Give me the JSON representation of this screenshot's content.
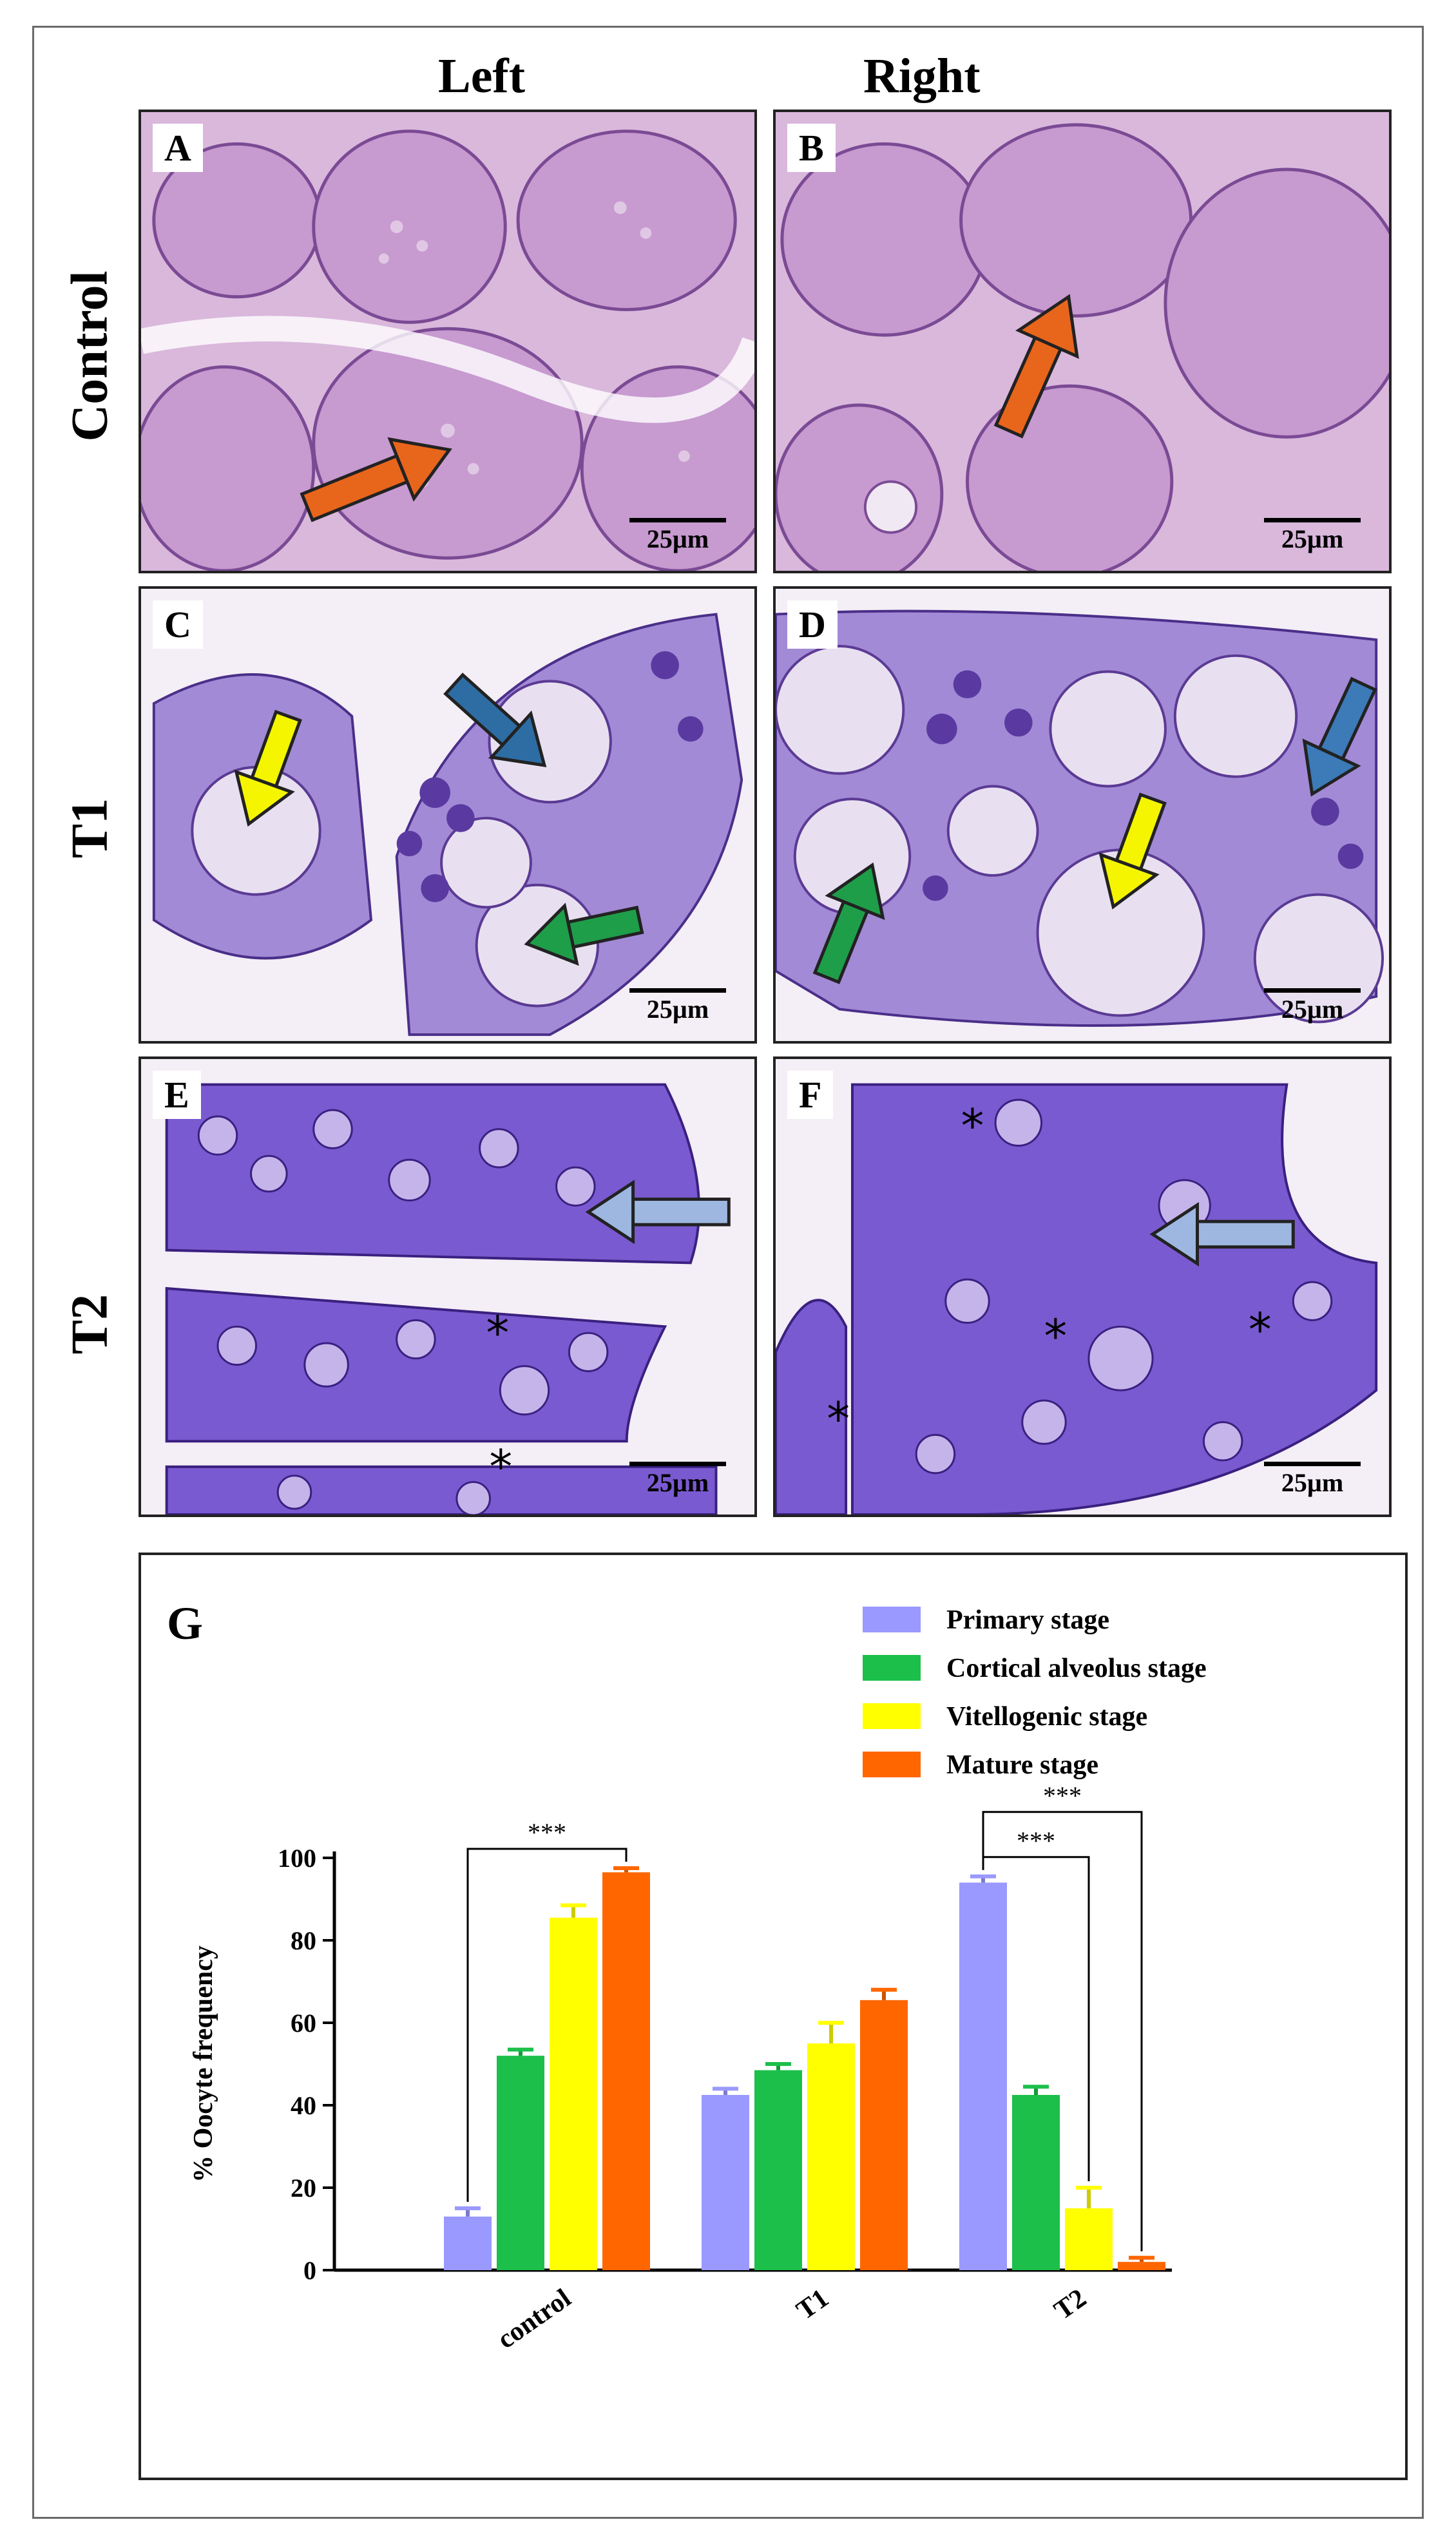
{
  "columns": {
    "left": "Left",
    "right": "Right"
  },
  "rows": {
    "control": "Control",
    "t1": "T1",
    "t2": "T2"
  },
  "panels": [
    {
      "id": "A",
      "label": "A",
      "scale": "25µm",
      "arrows": [
        "mature-stage"
      ]
    },
    {
      "id": "B",
      "label": "B",
      "scale": "25µm",
      "arrows": [
        "mature-stage"
      ]
    },
    {
      "id": "C",
      "label": "C",
      "scale": "25µm",
      "arrows": [
        "vitellogenic-stage",
        "primary-stage",
        "cortical-alveolus-stage"
      ]
    },
    {
      "id": "D",
      "label": "D",
      "scale": "25µm",
      "arrows": [
        "vitellogenic-stage",
        "primary-stage",
        "cortical-alveolus-stage"
      ]
    },
    {
      "id": "E",
      "label": "E",
      "scale": "25µm",
      "arrows": [
        "primary-stage"
      ],
      "asterisks": 2
    },
    {
      "id": "F",
      "label": "F",
      "scale": "25µm",
      "arrows": [
        "primary-stage"
      ],
      "asterisks": 4
    }
  ],
  "chart_label": "G",
  "arrow_colors": {
    "mature": "#e8651c",
    "primary_dark": "#2e6da4",
    "primary_light": "#9db7e0",
    "cortical": "#1f9e4a",
    "vitellogenic": "#f5f500"
  },
  "chart_data": {
    "type": "bar",
    "categories": [
      "control",
      "T1",
      "T2"
    ],
    "ylabel": "% Oocyte frequency",
    "ylim": [
      0,
      100
    ],
    "yticks": [
      0,
      20,
      40,
      60,
      80,
      100
    ],
    "series": [
      {
        "name": "Primary stage",
        "color": "#9999ff",
        "values": [
          13,
          42.5,
          94
        ],
        "errors": [
          2,
          1.5,
          1.5
        ]
      },
      {
        "name": "Cortical alveolus stage",
        "color": "#1cbf4a",
        "values": [
          52,
          48.5,
          42.5
        ],
        "errors": [
          1.5,
          1.5,
          2
        ]
      },
      {
        "name": "Vitellogenic stage",
        "color": "#ffff00",
        "values": [
          85.5,
          55,
          15
        ],
        "errors": [
          3,
          5,
          5
        ]
      },
      {
        "name": "Mature stage",
        "color": "#ff6600",
        "values": [
          96.5,
          65.5,
          2
        ],
        "errors": [
          1,
          2.5,
          1
        ]
      }
    ],
    "significance": [
      {
        "label": "***",
        "group": "control",
        "from": "Primary stage",
        "to": "Mature stage"
      },
      {
        "label": "***",
        "group": "T2",
        "from": "Primary stage",
        "to": "Mature stage"
      },
      {
        "label": "***",
        "group": "T2",
        "from": "Primary stage",
        "to": "Vitellogenic stage"
      }
    ],
    "legend_position": "top-right"
  }
}
